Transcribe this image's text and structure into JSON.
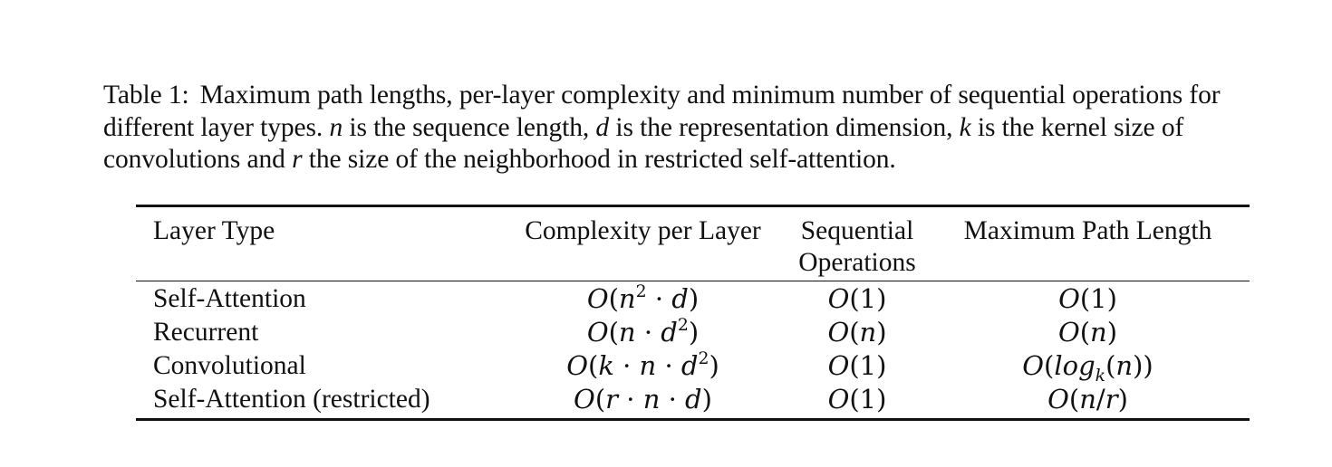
{
  "caption": {
    "label": "Table 1:",
    "text_parts": [
      "Maximum path lengths, per-layer complexity and minimum number of sequential operations for different layer types. ",
      "n",
      " is the sequence length, ",
      "d",
      " is the representation dimension, ",
      "k",
      " is the kernel size of convolutions and ",
      "r",
      " the size of the neighborhood in restricted self-attention."
    ]
  },
  "table": {
    "headers": {
      "layer_type": "Layer Type",
      "complexity": "Complexity per Layer",
      "sequential_line1": "Sequential",
      "sequential_line2": "Operations",
      "max_path": "Maximum Path Length"
    },
    "rows": [
      {
        "layer_type": "Self-Attention",
        "complexity": "O(n² · d)",
        "sequential": "O(1)",
        "max_path": "O(1)"
      },
      {
        "layer_type": "Recurrent",
        "complexity": "O(n · d²)",
        "sequential": "O(n)",
        "max_path": "O(n)"
      },
      {
        "layer_type": "Convolutional",
        "complexity": "O(k · n · d²)",
        "sequential": "O(1)",
        "max_path": "O(log_k(n))"
      },
      {
        "layer_type": "Self-Attention (restricted)",
        "complexity": "O(r · n · d)",
        "sequential": "O(1)",
        "max_path": "O(n/r)"
      }
    ]
  }
}
